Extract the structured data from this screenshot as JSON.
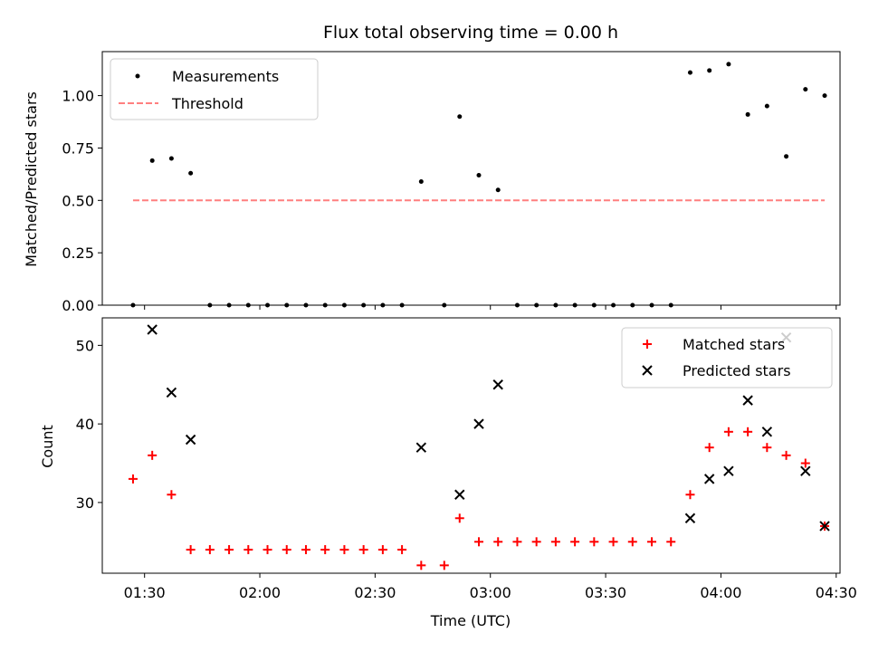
{
  "chart_data": [
    {
      "type": "scatter",
      "title": "Flux total observing time = 0.00 h",
      "xlabel": "",
      "ylabel": "Matched/Predicted stars",
      "ylim": [
        0,
        1.21
      ],
      "xlim": [
        "01:19",
        "04:31"
      ],
      "yticks": [
        0.0,
        0.25,
        0.5,
        0.75,
        1.0
      ],
      "ytick_labels": [
        "0.00",
        "0.25",
        "0.50",
        "0.75",
        "1.00"
      ],
      "legend_position": "top-left",
      "grid": false,
      "series": [
        {
          "name": "Measurements",
          "marker": "dot",
          "color": "#000000",
          "points": [
            {
              "t": "01:27",
              "y": 0.0
            },
            {
              "t": "01:32",
              "y": 0.69
            },
            {
              "t": "01:37",
              "y": 0.7
            },
            {
              "t": "01:42",
              "y": 0.63
            },
            {
              "t": "01:47",
              "y": 0.0
            },
            {
              "t": "01:52",
              "y": 0.0
            },
            {
              "t": "01:57",
              "y": 0.0
            },
            {
              "t": "02:02",
              "y": 0.0
            },
            {
              "t": "02:07",
              "y": 0.0
            },
            {
              "t": "02:12",
              "y": 0.0
            },
            {
              "t": "02:17",
              "y": 0.0
            },
            {
              "t": "02:22",
              "y": 0.0
            },
            {
              "t": "02:27",
              "y": 0.0
            },
            {
              "t": "02:32",
              "y": 0.0
            },
            {
              "t": "02:37",
              "y": 0.0
            },
            {
              "t": "02:42",
              "y": 0.59
            },
            {
              "t": "02:48",
              "y": 0.0
            },
            {
              "t": "02:52",
              "y": 0.9
            },
            {
              "t": "02:57",
              "y": 0.62
            },
            {
              "t": "03:02",
              "y": 0.55
            },
            {
              "t": "03:07",
              "y": 0.0
            },
            {
              "t": "03:12",
              "y": 0.0
            },
            {
              "t": "03:17",
              "y": 0.0
            },
            {
              "t": "03:22",
              "y": 0.0
            },
            {
              "t": "03:27",
              "y": 0.0
            },
            {
              "t": "03:32",
              "y": 0.0
            },
            {
              "t": "03:37",
              "y": 0.0
            },
            {
              "t": "03:42",
              "y": 0.0
            },
            {
              "t": "03:47",
              "y": 0.0
            },
            {
              "t": "03:52",
              "y": 1.11
            },
            {
              "t": "03:57",
              "y": 1.12
            },
            {
              "t": "04:02",
              "y": 1.15
            },
            {
              "t": "04:07",
              "y": 0.91
            },
            {
              "t": "04:12",
              "y": 0.95
            },
            {
              "t": "04:17",
              "y": 0.71
            },
            {
              "t": "04:22",
              "y": 1.03
            },
            {
              "t": "04:27",
              "y": 1.0
            }
          ]
        },
        {
          "name": "Threshold",
          "style": "dashed",
          "color": "#ff7f7f",
          "points": [
            {
              "t": "01:27",
              "y": 0.5
            },
            {
              "t": "04:27",
              "y": 0.5
            }
          ]
        }
      ]
    },
    {
      "type": "scatter",
      "title": "",
      "xlabel": "Time (UTC)",
      "ylabel": "Count",
      "ylim": [
        21,
        53.5
      ],
      "xlim": [
        "01:19",
        "04:31"
      ],
      "yticks": [
        30,
        40,
        50
      ],
      "ytick_labels": [
        "30",
        "40",
        "50"
      ],
      "xticks": [
        "01:30",
        "02:00",
        "02:30",
        "03:00",
        "03:30",
        "04:00",
        "04:30"
      ],
      "legend_position": "top-right",
      "grid": false,
      "series": [
        {
          "name": "Matched stars",
          "marker": "plus",
          "color": "#ff0000",
          "points": [
            {
              "t": "01:27",
              "y": 33
            },
            {
              "t": "01:32",
              "y": 36
            },
            {
              "t": "01:37",
              "y": 31
            },
            {
              "t": "01:42",
              "y": 24
            },
            {
              "t": "01:47",
              "y": 24
            },
            {
              "t": "01:52",
              "y": 24
            },
            {
              "t": "01:57",
              "y": 24
            },
            {
              "t": "02:02",
              "y": 24
            },
            {
              "t": "02:07",
              "y": 24
            },
            {
              "t": "02:12",
              "y": 24
            },
            {
              "t": "02:17",
              "y": 24
            },
            {
              "t": "02:22",
              "y": 24
            },
            {
              "t": "02:27",
              "y": 24
            },
            {
              "t": "02:32",
              "y": 24
            },
            {
              "t": "02:37",
              "y": 24
            },
            {
              "t": "02:42",
              "y": 22
            },
            {
              "t": "02:48",
              "y": 22
            },
            {
              "t": "02:52",
              "y": 28
            },
            {
              "t": "02:57",
              "y": 25
            },
            {
              "t": "03:02",
              "y": 25
            },
            {
              "t": "03:07",
              "y": 25
            },
            {
              "t": "03:12",
              "y": 25
            },
            {
              "t": "03:17",
              "y": 25
            },
            {
              "t": "03:22",
              "y": 25
            },
            {
              "t": "03:27",
              "y": 25
            },
            {
              "t": "03:32",
              "y": 25
            },
            {
              "t": "03:37",
              "y": 25
            },
            {
              "t": "03:42",
              "y": 25
            },
            {
              "t": "03:47",
              "y": 25
            },
            {
              "t": "03:52",
              "y": 31
            },
            {
              "t": "03:57",
              "y": 37
            },
            {
              "t": "04:02",
              "y": 39
            },
            {
              "t": "04:07",
              "y": 39
            },
            {
              "t": "04:12",
              "y": 37
            },
            {
              "t": "04:17",
              "y": 36
            },
            {
              "t": "04:22",
              "y": 35
            },
            {
              "t": "04:27",
              "y": 27
            }
          ]
        },
        {
          "name": "Predicted stars",
          "marker": "x",
          "color": "#000000",
          "points": [
            {
              "t": "01:32",
              "y": 52
            },
            {
              "t": "01:37",
              "y": 44
            },
            {
              "t": "01:42",
              "y": 38
            },
            {
              "t": "02:42",
              "y": 37
            },
            {
              "t": "02:52",
              "y": 31
            },
            {
              "t": "02:57",
              "y": 40
            },
            {
              "t": "03:02",
              "y": 45
            },
            {
              "t": "03:52",
              "y": 28
            },
            {
              "t": "03:57",
              "y": 33
            },
            {
              "t": "04:02",
              "y": 34
            },
            {
              "t": "04:07",
              "y": 43
            },
            {
              "t": "04:12",
              "y": 39
            },
            {
              "t": "04:17",
              "y": 51
            },
            {
              "t": "04:22",
              "y": 34
            },
            {
              "t": "04:27",
              "y": 27
            }
          ]
        }
      ]
    }
  ]
}
